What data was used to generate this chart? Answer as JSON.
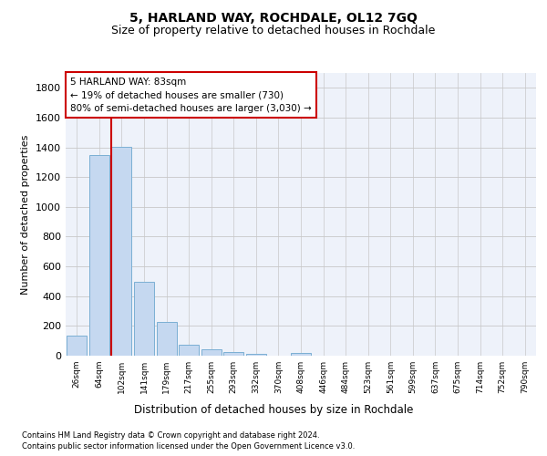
{
  "title1": "5, HARLAND WAY, ROCHDALE, OL12 7GQ",
  "title2": "Size of property relative to detached houses in Rochdale",
  "xlabel": "Distribution of detached houses by size in Rochdale",
  "ylabel": "Number of detached properties",
  "bar_color": "#c5d8f0",
  "bar_edge_color": "#7bafd4",
  "categories": [
    "26sqm",
    "64sqm",
    "102sqm",
    "141sqm",
    "179sqm",
    "217sqm",
    "255sqm",
    "293sqm",
    "332sqm",
    "370sqm",
    "408sqm",
    "446sqm",
    "484sqm",
    "523sqm",
    "561sqm",
    "599sqm",
    "637sqm",
    "675sqm",
    "714sqm",
    "752sqm",
    "790sqm"
  ],
  "values": [
    135,
    1350,
    1405,
    495,
    225,
    75,
    43,
    27,
    12,
    0,
    18,
    0,
    0,
    0,
    0,
    0,
    0,
    0,
    0,
    0,
    0
  ],
  "vline_x": 1.55,
  "vline_color": "#cc0000",
  "annotation_text": "5 HARLAND WAY: 83sqm\n← 19% of detached houses are smaller (730)\n80% of semi-detached houses are larger (3,030) →",
  "annotation_box_color": "#ffffff",
  "annotation_box_edge": "#cc0000",
  "ylim": [
    0,
    1900
  ],
  "yticks": [
    0,
    200,
    400,
    600,
    800,
    1000,
    1200,
    1400,
    1600,
    1800
  ],
  "footer1": "Contains HM Land Registry data © Crown copyright and database right 2024.",
  "footer2": "Contains public sector information licensed under the Open Government Licence v3.0.",
  "bg_color": "#eef2fa",
  "grid_color": "#c8c8c8",
  "title1_fontsize": 10,
  "title2_fontsize": 9
}
